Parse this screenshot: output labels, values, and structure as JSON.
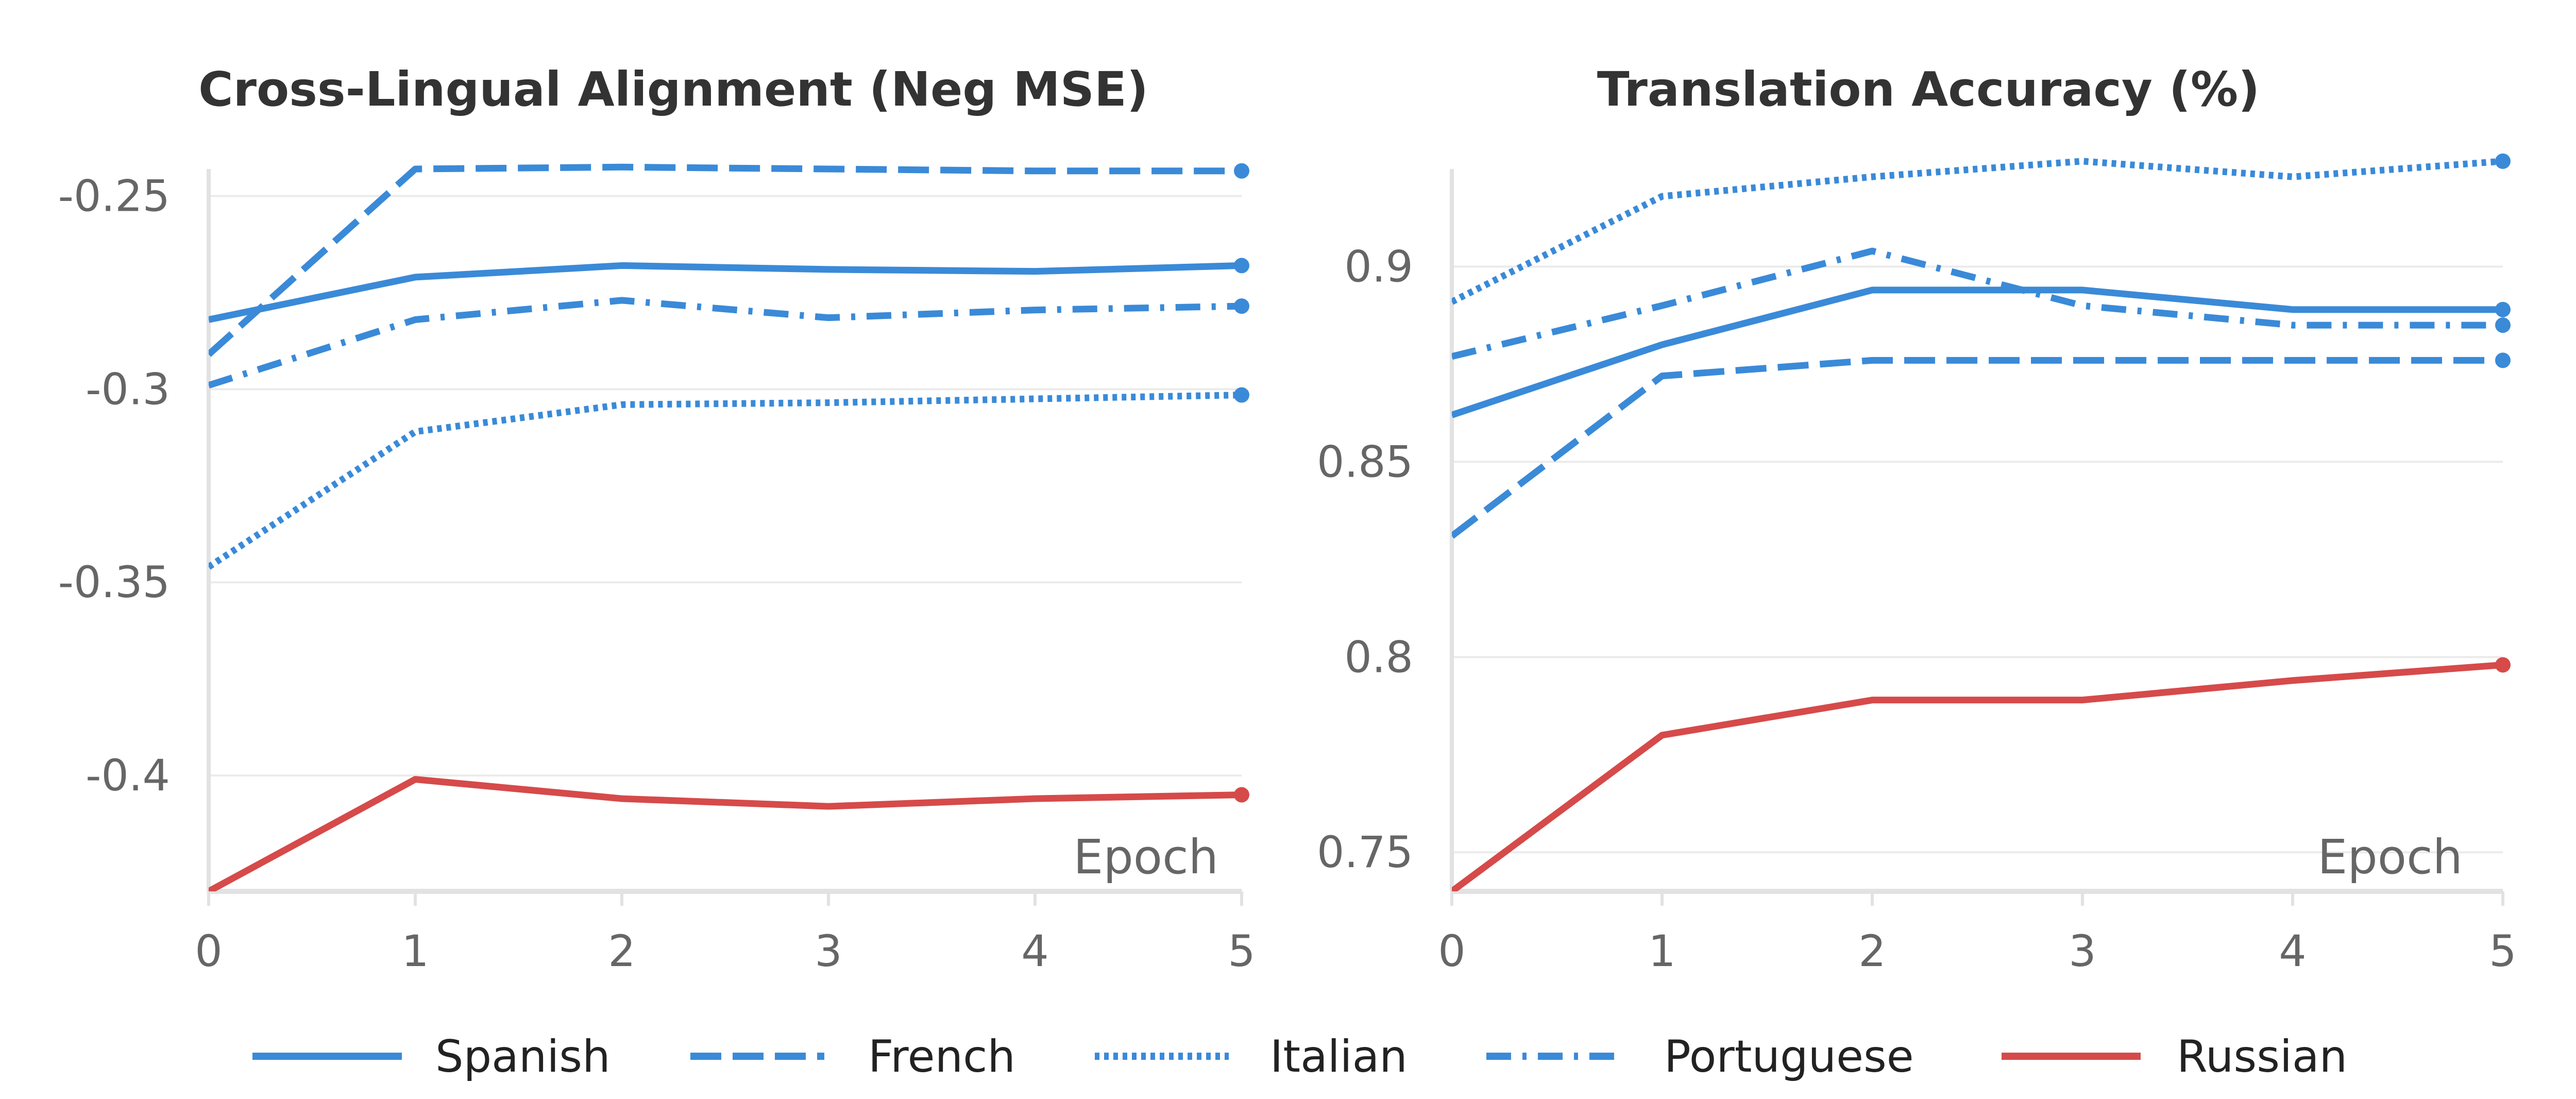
{
  "chart_data": [
    {
      "type": "line",
      "title": "Cross-Lingual Alignment (Neg MSE)",
      "xlabel": "Epoch",
      "ylabel": "",
      "x": [
        0,
        1,
        2,
        3,
        4,
        5
      ],
      "x_ticks": [
        "0",
        "1",
        "2",
        "3",
        "4",
        "5"
      ],
      "ylim": [
        -0.43,
        -0.243
      ],
      "y_ticks": [
        -0.4,
        -0.35,
        -0.3,
        -0.25
      ],
      "y_tick_labels": [
        "-0.4",
        "-0.35",
        "-0.3",
        "-0.25"
      ],
      "grid": true,
      "series": [
        {
          "name": "Spanish",
          "values": [
            -0.282,
            -0.271,
            -0.268,
            -0.269,
            -0.2695,
            -0.268
          ]
        },
        {
          "name": "French",
          "values": [
            -0.291,
            -0.243,
            -0.2425,
            -0.243,
            -0.2435,
            -0.2435
          ]
        },
        {
          "name": "Italian",
          "values": [
            -0.346,
            -0.311,
            -0.304,
            -0.3035,
            -0.3025,
            -0.3015
          ]
        },
        {
          "name": "Portuguese",
          "values": [
            -0.299,
            -0.282,
            -0.277,
            -0.2815,
            -0.2795,
            -0.2785
          ]
        },
        {
          "name": "Russian",
          "values": [
            -0.43,
            -0.401,
            -0.406,
            -0.408,
            -0.406,
            -0.405
          ]
        }
      ]
    },
    {
      "type": "line",
      "title": "Translation Accuracy (%)",
      "xlabel": "Epoch",
      "ylabel": "",
      "x": [
        0,
        1,
        2,
        3,
        4,
        5
      ],
      "x_ticks": [
        "0",
        "1",
        "2",
        "3",
        "4",
        "5"
      ],
      "ylim": [
        0.74,
        0.925
      ],
      "y_ticks": [
        0.75,
        0.8,
        0.85,
        0.9
      ],
      "y_tick_labels": [
        "0.75",
        "0.8",
        "0.85",
        "0.9"
      ],
      "grid": true,
      "series": [
        {
          "name": "Spanish",
          "values": [
            0.862,
            0.88,
            0.894,
            0.894,
            0.889,
            0.889
          ]
        },
        {
          "name": "French",
          "values": [
            0.831,
            0.872,
            0.876,
            0.876,
            0.876,
            0.876
          ]
        },
        {
          "name": "Italian",
          "values": [
            0.891,
            0.918,
            0.923,
            0.927,
            0.923,
            0.927
          ]
        },
        {
          "name": "Portuguese",
          "values": [
            0.877,
            0.89,
            0.904,
            0.89,
            0.885,
            0.885
          ]
        },
        {
          "name": "Russian",
          "values": [
            0.74,
            0.78,
            0.789,
            0.789,
            0.794,
            0.798
          ]
        }
      ]
    }
  ],
  "legend": {
    "placement": "bottom",
    "entries": [
      {
        "label": "Spanish",
        "color": "#3a8ad8",
        "dash": "solid"
      },
      {
        "label": "French",
        "color": "#3a8ad8",
        "dash": "dashed"
      },
      {
        "label": "Italian",
        "color": "#3a8ad8",
        "dash": "dotted"
      },
      {
        "label": "Portuguese",
        "color": "#3a8ad8",
        "dash": "dashdot"
      },
      {
        "label": "Russian",
        "color": "#d64a4a",
        "dash": "solid"
      }
    ]
  },
  "colors": {
    "blue": "#3a8ad8",
    "red": "#d64a4a",
    "grid": "#ebebeb",
    "axis": "#e2e2e2"
  }
}
